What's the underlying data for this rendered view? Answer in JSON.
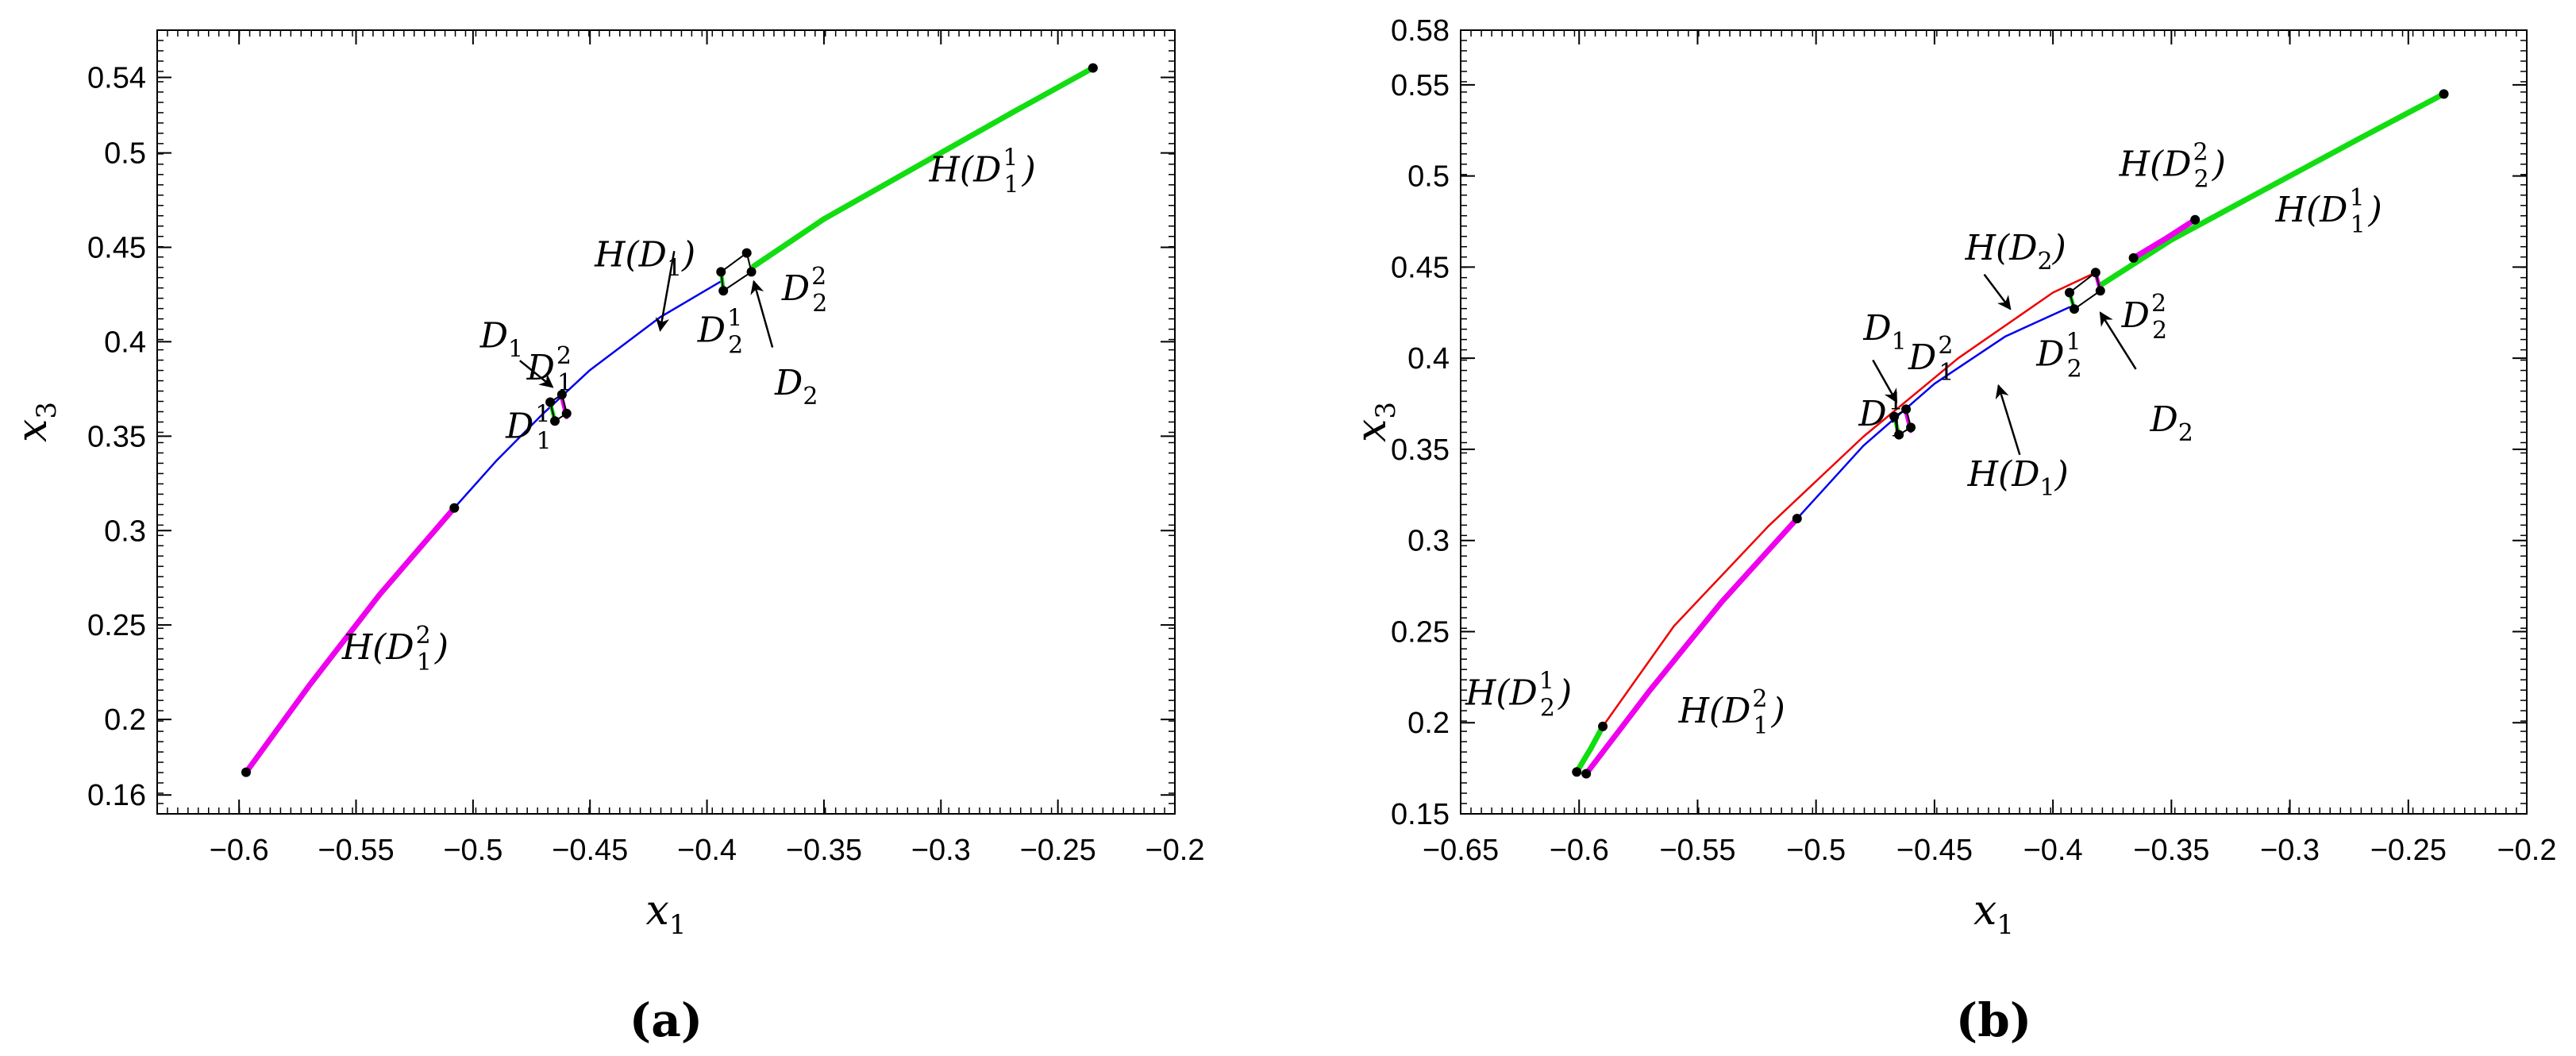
{
  "chart_data": [
    {
      "type": "line",
      "panel_label": "(a)",
      "xlabel": "x1",
      "ylabel": "x3",
      "xlim": [
        -0.635,
        -0.2
      ],
      "ylim": [
        0.15,
        0.565
      ],
      "grid": false,
      "xticks": [
        -0.6,
        -0.55,
        -0.5,
        -0.45,
        -0.4,
        -0.35,
        -0.3,
        -0.25,
        -0.2
      ],
      "xtick_labels": [
        "−0.6",
        "−0.55",
        "−0.5",
        "−0.45",
        "−0.4",
        "−0.35",
        "−0.3",
        "−0.25",
        "−0.2"
      ],
      "yticks": [
        0.16,
        0.2,
        0.25,
        0.3,
        0.35,
        0.4,
        0.45,
        0.5,
        0.54
      ],
      "ytick_labels": [
        "0.16",
        "0.2",
        "0.25",
        "0.3",
        "0.35",
        "0.4",
        "0.45",
        "0.5",
        "0.54"
      ],
      "series": [
        {
          "color": "#ee00ee",
          "width": 7,
          "x": [
            -0.597,
            -0.57,
            -0.54,
            -0.508
          ],
          "y": [
            0.172,
            0.218,
            0.266,
            0.312
          ]
        },
        {
          "color": "#0000ee",
          "width": 2.5,
          "x": [
            -0.508,
            -0.49,
            -0.47,
            -0.45,
            -0.42,
            -0.394
          ],
          "y": [
            0.312,
            0.337,
            0.362,
            0.385,
            0.413,
            0.432
          ]
        },
        {
          "color": "#11dd11",
          "width": 7,
          "x": [
            -0.38,
            -0.35,
            -0.31,
            -0.27,
            -0.235
          ],
          "y": [
            0.44,
            0.465,
            0.493,
            0.521,
            0.545
          ]
        },
        {
          "color": "#ee00ee",
          "width": 5,
          "x": [
            -0.462,
            -0.46
          ],
          "y": [
            0.37,
            0.36
          ]
        },
        {
          "color": "#11dd11",
          "width": 5,
          "x": [
            -0.467,
            -0.465
          ],
          "y": [
            0.368,
            0.358
          ]
        },
        {
          "color": "#11dd11",
          "width": 5,
          "x": [
            -0.394,
            -0.393
          ],
          "y": [
            0.437,
            0.428
          ]
        }
      ],
      "points": [
        {
          "x": -0.597,
          "y": 0.172
        },
        {
          "x": -0.508,
          "y": 0.312
        },
        {
          "x": -0.235,
          "y": 0.545
        },
        {
          "x": -0.467,
          "y": 0.368
        },
        {
          "x": -0.462,
          "y": 0.372
        },
        {
          "x": -0.465,
          "y": 0.358
        },
        {
          "x": -0.46,
          "y": 0.362
        },
        {
          "x": -0.394,
          "y": 0.437
        },
        {
          "x": -0.383,
          "y": 0.447
        },
        {
          "x": -0.393,
          "y": 0.427
        },
        {
          "x": -0.381,
          "y": 0.437
        }
      ],
      "rectangles": [
        {
          "x": [
            -0.467,
            -0.462,
            -0.46,
            -0.465
          ],
          "y": [
            0.368,
            0.372,
            0.362,
            0.358
          ],
          "color": "#000000"
        },
        {
          "x": [
            -0.394,
            -0.383,
            -0.381,
            -0.393
          ],
          "y": [
            0.437,
            0.447,
            0.437,
            0.427
          ],
          "color": "#000000"
        }
      ],
      "arrows": [
        {
          "from": [
            -0.414,
            0.448
          ],
          "to": [
            -0.42,
            0.406
          ]
        },
        {
          "from": [
            -0.48,
            0.39
          ],
          "to": [
            -0.466,
            0.376
          ]
        },
        {
          "from": [
            -0.372,
            0.397
          ],
          "to": [
            -0.38,
            0.432
          ]
        }
      ],
      "annotations": [
        {
          "base": "H(D",
          "sub": "1",
          "sup": "1",
          "tail": ")",
          "x": -0.305,
          "y": 0.485
        },
        {
          "base": "H(D",
          "sub": "1",
          "sup": "",
          "tail": ")",
          "x": -0.448,
          "y": 0.44
        },
        {
          "base": "D",
          "sub": "1",
          "sup": "",
          "tail": "",
          "x": -0.497,
          "y": 0.397
        },
        {
          "base": "D",
          "sub": "1",
          "sup": "2",
          "tail": "",
          "x": -0.477,
          "y": 0.38
        },
        {
          "base": "D",
          "sub": "1",
          "sup": "1",
          "tail": "",
          "x": -0.486,
          "y": 0.349
        },
        {
          "base": "D",
          "sub": "2",
          "sup": "1",
          "tail": "",
          "x": -0.404,
          "y": 0.4
        },
        {
          "base": "D",
          "sub": "2",
          "sup": "2",
          "tail": "",
          "x": -0.368,
          "y": 0.422
        },
        {
          "base": "D",
          "sub": "2",
          "sup": "",
          "tail": "",
          "x": -0.371,
          "y": 0.372
        },
        {
          "base": "H(D",
          "sub": "1",
          "sup": "2",
          "tail": ")",
          "x": -0.556,
          "y": 0.232
        }
      ]
    },
    {
      "type": "line",
      "panel_label": "(b)",
      "xlabel": "x1",
      "ylabel": "x3",
      "xlim": [
        -0.65,
        -0.2
      ],
      "ylim": [
        0.15,
        0.58
      ],
      "grid": false,
      "xticks": [
        -0.65,
        -0.6,
        -0.55,
        -0.5,
        -0.45,
        -0.4,
        -0.35,
        -0.3,
        -0.25,
        -0.2
      ],
      "xtick_labels": [
        "−0.65",
        "−0.6",
        "−0.55",
        "−0.5",
        "−0.45",
        "−0.4",
        "−0.35",
        "−0.3",
        "−0.25",
        "−0.2"
      ],
      "yticks": [
        0.15,
        0.2,
        0.25,
        0.3,
        0.35,
        0.4,
        0.45,
        0.5,
        0.55,
        0.58
      ],
      "ytick_labels": [
        "0.15",
        "0.2",
        "0.25",
        "0.3",
        "0.35",
        "0.4",
        "0.45",
        "0.5",
        "0.55",
        "0.58"
      ],
      "series": [
        {
          "color": "#ee0000",
          "width": 2.5,
          "x": [
            -0.59,
            -0.56,
            -0.52,
            -0.48,
            -0.44,
            -0.4,
            -0.382
          ],
          "y": [
            0.198,
            0.253,
            0.308,
            0.357,
            0.4,
            0.436,
            0.447
          ]
        },
        {
          "color": "#0000ee",
          "width": 2.5,
          "x": [
            -0.508,
            -0.48,
            -0.45,
            -0.42,
            -0.393
          ],
          "y": [
            0.312,
            0.352,
            0.386,
            0.412,
            0.428
          ]
        },
        {
          "color": "#ee00ee",
          "width": 7,
          "x": [
            -0.597,
            -0.57,
            -0.54,
            -0.508
          ],
          "y": [
            0.172,
            0.218,
            0.266,
            0.312
          ]
        },
        {
          "color": "#11dd11",
          "width": 7,
          "x": [
            -0.601,
            -0.595,
            -0.59
          ],
          "y": [
            0.173,
            0.186,
            0.198
          ]
        },
        {
          "color": "#11dd11",
          "width": 7,
          "x": [
            -0.38,
            -0.35,
            -0.31,
            -0.27,
            -0.235
          ],
          "y": [
            0.44,
            0.465,
            0.493,
            0.521,
            0.545
          ]
        },
        {
          "color": "#ee00ee",
          "width": 7,
          "x": [
            -0.366,
            -0.352,
            -0.34
          ],
          "y": [
            0.455,
            0.466,
            0.476
          ]
        },
        {
          "color": "#ee00ee",
          "width": 5,
          "x": [
            -0.462,
            -0.46
          ],
          "y": [
            0.37,
            0.36
          ]
        },
        {
          "color": "#11dd11",
          "width": 5,
          "x": [
            -0.467,
            -0.465
          ],
          "y": [
            0.368,
            0.358
          ]
        },
        {
          "color": "#11dd11",
          "width": 5,
          "x": [
            -0.393,
            -0.391
          ],
          "y": [
            0.436,
            0.427
          ]
        },
        {
          "color": "#ee00ee",
          "width": 5,
          "x": [
            -0.382,
            -0.38
          ],
          "y": [
            0.447,
            0.437
          ]
        }
      ],
      "points": [
        {
          "x": -0.601,
          "y": 0.173
        },
        {
          "x": -0.597,
          "y": 0.172
        },
        {
          "x": -0.59,
          "y": 0.198
        },
        {
          "x": -0.508,
          "y": 0.312
        },
        {
          "x": -0.467,
          "y": 0.368
        },
        {
          "x": -0.462,
          "y": 0.372
        },
        {
          "x": -0.465,
          "y": 0.358
        },
        {
          "x": -0.46,
          "y": 0.362
        },
        {
          "x": -0.393,
          "y": 0.436
        },
        {
          "x": -0.382,
          "y": 0.447
        },
        {
          "x": -0.391,
          "y": 0.427
        },
        {
          "x": -0.38,
          "y": 0.437
        },
        {
          "x": -0.366,
          "y": 0.455
        },
        {
          "x": -0.34,
          "y": 0.476
        },
        {
          "x": -0.235,
          "y": 0.545
        }
      ],
      "rectangles": [
        {
          "x": [
            -0.467,
            -0.462,
            -0.46,
            -0.465
          ],
          "y": [
            0.368,
            0.372,
            0.362,
            0.358
          ],
          "color": "#000000"
        },
        {
          "x": [
            -0.393,
            -0.382,
            -0.38,
            -0.391
          ],
          "y": [
            0.436,
            0.447,
            0.437,
            0.427
          ],
          "color": "#000000"
        }
      ],
      "arrows": [
        {
          "from": [
            -0.429,
            0.446
          ],
          "to": [
            -0.418,
            0.427
          ]
        },
        {
          "from": [
            -0.414,
            0.347
          ],
          "to": [
            -0.423,
            0.385
          ]
        },
        {
          "from": [
            -0.476,
            0.399
          ],
          "to": [
            -0.466,
            0.376
          ]
        },
        {
          "from": [
            -0.365,
            0.394
          ],
          "to": [
            -0.38,
            0.425
          ]
        }
      ],
      "annotations": [
        {
          "base": "H(D",
          "sub": "2",
          "sup": "2",
          "tail": ")",
          "x": -0.372,
          "y": 0.5
        },
        {
          "base": "H(D",
          "sub": "1",
          "sup": "1",
          "tail": ")",
          "x": -0.306,
          "y": 0.475
        },
        {
          "base": "H(D",
          "sub": "2",
          "sup": "",
          "tail": ")",
          "x": -0.437,
          "y": 0.454
        },
        {
          "base": "D",
          "sub": "1",
          "sup": "",
          "tail": "",
          "x": -0.48,
          "y": 0.41
        },
        {
          "base": "D",
          "sub": "1",
          "sup": "2",
          "tail": "",
          "x": -0.461,
          "y": 0.394
        },
        {
          "base": "D",
          "sub": "1",
          "sup": "1",
          "tail": "",
          "x": -0.482,
          "y": 0.363
        },
        {
          "base": "D",
          "sub": "2",
          "sup": "1",
          "tail": "",
          "x": -0.407,
          "y": 0.396
        },
        {
          "base": "D",
          "sub": "2",
          "sup": "2",
          "tail": "",
          "x": -0.371,
          "y": 0.417
        },
        {
          "base": "D",
          "sub": "2",
          "sup": "",
          "tail": "",
          "x": -0.359,
          "y": 0.36
        },
        {
          "base": "H(D",
          "sub": "1",
          "sup": "",
          "tail": ")",
          "x": -0.436,
          "y": 0.33
        },
        {
          "base": "H(D",
          "sub": "2",
          "sup": "1",
          "tail": ")",
          "x": -0.648,
          "y": 0.21
        },
        {
          "base": "H(D",
          "sub": "1",
          "sup": "2",
          "tail": ")",
          "x": -0.558,
          "y": 0.2
        }
      ]
    }
  ]
}
